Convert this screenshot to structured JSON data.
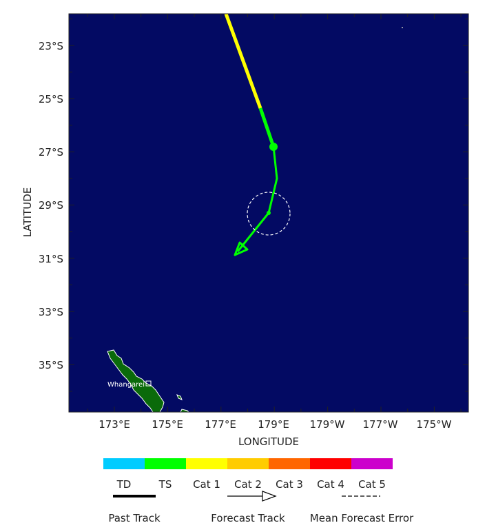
{
  "map": {
    "colors": {
      "ocean": "#030a63",
      "land": "#0a6a0a",
      "track_ts": "#00ff00",
      "track_cat1": "#ffff00"
    },
    "x_axis": {
      "title": "LONGITUDE",
      "ticks": [
        "173°E",
        "175°E",
        "177°E",
        "179°E",
        "179°W",
        "177°W",
        "175°W"
      ]
    },
    "y_axis": {
      "title": "LATITUDE",
      "ticks": [
        "23°S",
        "25°S",
        "27°S",
        "29°S",
        "31°S",
        "33°S",
        "35°S"
      ]
    },
    "places": [
      {
        "name": "Whangarei",
        "icon": "square-marker-icon"
      }
    ],
    "cone": "dashed-circle-icon"
  },
  "legend": {
    "scale": [
      {
        "label": "TD",
        "color": "#00ccff"
      },
      {
        "label": "TS",
        "color": "#00ff00"
      },
      {
        "label": "Cat 1",
        "color": "#ffff00"
      },
      {
        "label": "Cat 2",
        "color": "#ffcc00"
      },
      {
        "label": "Cat 3",
        "color": "#ff6600"
      },
      {
        "label": "Cat 4",
        "color": "#ff0000"
      },
      {
        "label": "Cat 5",
        "color": "#cc00cc"
      }
    ],
    "keys": [
      {
        "label": "Past Track",
        "icon": "thick-line-icon"
      },
      {
        "label": "Forecast Track",
        "icon": "arrow-line-icon"
      },
      {
        "label": "Mean Forecast Error",
        "icon": "dashed-line-icon"
      }
    ]
  }
}
